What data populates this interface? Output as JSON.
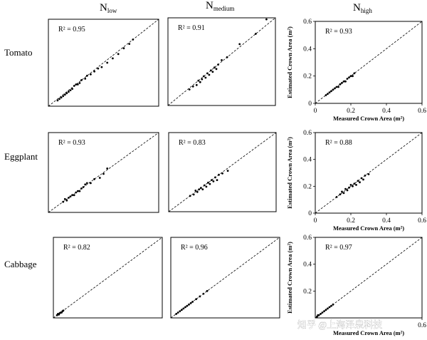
{
  "figure": {
    "column_headers": [
      {
        "main": "N",
        "sub": "low"
      },
      {
        "main": "N",
        "sub": "medium"
      },
      {
        "main": "N",
        "sub": "high"
      }
    ],
    "row_labels": [
      "Tomato",
      "Eggplant",
      "Cabbage"
    ],
    "watermark": "知乎 @上海泽泉科技"
  },
  "chart_data": [
    {
      "type": "scatter",
      "crop": "Tomato",
      "nitrogen": "low",
      "r2_label": "R² = 0.95",
      "xlim": [
        0,
        0.6
      ],
      "ylim": [
        0,
        0.6
      ],
      "reference_line": "1:1 dashed",
      "points": [
        [
          0.05,
          0.04
        ],
        [
          0.06,
          0.05
        ],
        [
          0.07,
          0.06
        ],
        [
          0.08,
          0.07
        ],
        [
          0.09,
          0.08
        ],
        [
          0.1,
          0.09
        ],
        [
          0.11,
          0.1
        ],
        [
          0.12,
          0.11
        ],
        [
          0.13,
          0.12
        ],
        [
          0.14,
          0.14
        ],
        [
          0.15,
          0.15
        ],
        [
          0.16,
          0.15
        ],
        [
          0.17,
          0.16
        ],
        [
          0.18,
          0.18
        ],
        [
          0.2,
          0.19
        ],
        [
          0.21,
          0.21
        ],
        [
          0.23,
          0.22
        ],
        [
          0.25,
          0.24
        ],
        [
          0.27,
          0.26
        ],
        [
          0.29,
          0.27
        ],
        [
          0.32,
          0.3
        ],
        [
          0.35,
          0.33
        ],
        [
          0.38,
          0.36
        ],
        [
          0.41,
          0.4
        ],
        [
          0.44,
          0.43
        ],
        [
          0.46,
          0.46
        ]
      ]
    },
    {
      "type": "scatter",
      "crop": "Tomato",
      "nitrogen": "medium",
      "r2_label": "R² = 0.91",
      "xlim": [
        0,
        0.6
      ],
      "ylim": [
        0,
        0.6
      ],
      "reference_line": "1:1 dashed",
      "points": [
        [
          0.12,
          0.11
        ],
        [
          0.14,
          0.13
        ],
        [
          0.16,
          0.14
        ],
        [
          0.17,
          0.17
        ],
        [
          0.18,
          0.16
        ],
        [
          0.19,
          0.18
        ],
        [
          0.2,
          0.2
        ],
        [
          0.21,
          0.19
        ],
        [
          0.22,
          0.22
        ],
        [
          0.23,
          0.21
        ],
        [
          0.24,
          0.24
        ],
        [
          0.25,
          0.23
        ],
        [
          0.26,
          0.26
        ],
        [
          0.27,
          0.25
        ],
        [
          0.28,
          0.28
        ],
        [
          0.3,
          0.31
        ],
        [
          0.33,
          0.33
        ],
        [
          0.4,
          0.42
        ],
        [
          0.49,
          0.49
        ],
        [
          0.55,
          0.59
        ]
      ]
    },
    {
      "type": "scatter",
      "crop": "Tomato",
      "nitrogen": "high",
      "r2_label": "R² = 0.93",
      "xlim": [
        0,
        0.6
      ],
      "ylim": [
        0,
        0.6
      ],
      "reference_line": "1:1 dashed",
      "x_ticks": [
        0,
        0.2,
        0.4,
        0.6
      ],
      "y_ticks": [
        0,
        0.2,
        0.4,
        0.6
      ],
      "xlabel": "Measured Crown Area (m²)",
      "ylabel": "Estimated Crown Area (m²)",
      "points": [
        [
          0.06,
          0.06
        ],
        [
          0.07,
          0.07
        ],
        [
          0.08,
          0.08
        ],
        [
          0.09,
          0.09
        ],
        [
          0.1,
          0.1
        ],
        [
          0.11,
          0.11
        ],
        [
          0.12,
          0.12
        ],
        [
          0.13,
          0.12
        ],
        [
          0.14,
          0.14
        ],
        [
          0.15,
          0.15
        ],
        [
          0.16,
          0.16
        ],
        [
          0.17,
          0.16
        ],
        [
          0.18,
          0.18
        ],
        [
          0.19,
          0.19
        ],
        [
          0.2,
          0.2
        ],
        [
          0.21,
          0.2
        ],
        [
          0.22,
          0.22
        ]
      ]
    },
    {
      "type": "scatter",
      "crop": "Eggplant",
      "nitrogen": "low",
      "r2_label": "R² = 0.93",
      "xlim": [
        0,
        0.6
      ],
      "ylim": [
        0,
        0.6
      ],
      "reference_line": "1:1 dashed",
      "points": [
        [
          0.08,
          0.08
        ],
        [
          0.09,
          0.1
        ],
        [
          0.1,
          0.09
        ],
        [
          0.11,
          0.11
        ],
        [
          0.12,
          0.12
        ],
        [
          0.13,
          0.13
        ],
        [
          0.14,
          0.13
        ],
        [
          0.15,
          0.15
        ],
        [
          0.16,
          0.16
        ],
        [
          0.17,
          0.16
        ],
        [
          0.18,
          0.18
        ],
        [
          0.19,
          0.19
        ],
        [
          0.2,
          0.21
        ],
        [
          0.21,
          0.22
        ],
        [
          0.23,
          0.22
        ],
        [
          0.25,
          0.25
        ],
        [
          0.28,
          0.26
        ],
        [
          0.3,
          0.29
        ],
        [
          0.32,
          0.33
        ]
      ]
    },
    {
      "type": "scatter",
      "crop": "Eggplant",
      "nitrogen": "medium",
      "r2_label": "R² = 0.83",
      "xlim": [
        0,
        0.6
      ],
      "ylim": [
        0,
        0.6
      ],
      "reference_line": "1:1 dashed",
      "points": [
        [
          0.12,
          0.12
        ],
        [
          0.14,
          0.13
        ],
        [
          0.15,
          0.16
        ],
        [
          0.16,
          0.15
        ],
        [
          0.17,
          0.17
        ],
        [
          0.18,
          0.18
        ],
        [
          0.19,
          0.17
        ],
        [
          0.2,
          0.2
        ],
        [
          0.21,
          0.19
        ],
        [
          0.22,
          0.22
        ],
        [
          0.23,
          0.21
        ],
        [
          0.24,
          0.24
        ],
        [
          0.25,
          0.23
        ],
        [
          0.26,
          0.26
        ],
        [
          0.27,
          0.24
        ],
        [
          0.28,
          0.28
        ],
        [
          0.3,
          0.29
        ],
        [
          0.33,
          0.31
        ]
      ]
    },
    {
      "type": "scatter",
      "crop": "Eggplant",
      "nitrogen": "high",
      "r2_label": "R² = 0.88",
      "xlim": [
        0,
        0.6
      ],
      "ylim": [
        0,
        0.6
      ],
      "reference_line": "1:1 dashed",
      "x_ticks": [
        0,
        0.2,
        0.4,
        0.6
      ],
      "y_ticks": [
        0,
        0.2,
        0.4,
        0.6
      ],
      "xlabel": "Measured Crown Area (m²)",
      "ylabel": "Estimated Crown Area (m²)",
      "points": [
        [
          0.12,
          0.12
        ],
        [
          0.14,
          0.14
        ],
        [
          0.15,
          0.16
        ],
        [
          0.16,
          0.15
        ],
        [
          0.17,
          0.18
        ],
        [
          0.18,
          0.17
        ],
        [
          0.19,
          0.19
        ],
        [
          0.2,
          0.21
        ],
        [
          0.21,
          0.2
        ],
        [
          0.22,
          0.22
        ],
        [
          0.23,
          0.21
        ],
        [
          0.24,
          0.24
        ],
        [
          0.25,
          0.23
        ],
        [
          0.26,
          0.26
        ],
        [
          0.27,
          0.25
        ],
        [
          0.28,
          0.28
        ],
        [
          0.3,
          0.29
        ]
      ]
    },
    {
      "type": "scatter",
      "crop": "Cabbage",
      "nitrogen": "low",
      "r2_label": "R² = 0.82",
      "xlim": [
        0,
        0.6
      ],
      "ylim": [
        0,
        0.6
      ],
      "reference_line": "1:1 dashed",
      "points": [
        [
          0.02,
          0.02
        ],
        [
          0.025,
          0.03
        ],
        [
          0.03,
          0.025
        ],
        [
          0.035,
          0.035
        ],
        [
          0.04,
          0.04
        ],
        [
          0.045,
          0.04
        ],
        [
          0.05,
          0.05
        ],
        [
          0.055,
          0.055
        ]
      ]
    },
    {
      "type": "scatter",
      "crop": "Cabbage",
      "nitrogen": "medium",
      "r2_label": "R² = 0.96",
      "xlim": [
        0,
        0.6
      ],
      "ylim": [
        0,
        0.6
      ],
      "reference_line": "1:1 dashed",
      "points": [
        [
          0.03,
          0.03
        ],
        [
          0.04,
          0.04
        ],
        [
          0.05,
          0.05
        ],
        [
          0.06,
          0.06
        ],
        [
          0.07,
          0.07
        ],
        [
          0.08,
          0.08
        ],
        [
          0.09,
          0.09
        ],
        [
          0.1,
          0.1
        ],
        [
          0.11,
          0.11
        ],
        [
          0.12,
          0.12
        ],
        [
          0.14,
          0.14
        ],
        [
          0.16,
          0.16
        ],
        [
          0.18,
          0.18
        ],
        [
          0.2,
          0.2
        ]
      ]
    },
    {
      "type": "scatter",
      "crop": "Cabbage",
      "nitrogen": "high",
      "r2_label": "R² = 0.97",
      "xlim": [
        0,
        0.6
      ],
      "ylim": [
        0,
        0.6
      ],
      "reference_line": "1:1 dashed",
      "x_ticks": [
        0.6
      ],
      "y_ticks": [
        0.2,
        0.4,
        0.6
      ],
      "xlabel": "Measured Crown Area (m²)",
      "ylabel": "Estimated Crown Area (m²)",
      "points": [
        [
          0.01,
          0.01
        ],
        [
          0.015,
          0.02
        ],
        [
          0.02,
          0.02
        ],
        [
          0.03,
          0.03
        ],
        [
          0.04,
          0.04
        ],
        [
          0.05,
          0.05
        ],
        [
          0.06,
          0.06
        ],
        [
          0.07,
          0.07
        ],
        [
          0.08,
          0.08
        ],
        [
          0.09,
          0.09
        ],
        [
          0.1,
          0.1
        ]
      ]
    }
  ]
}
